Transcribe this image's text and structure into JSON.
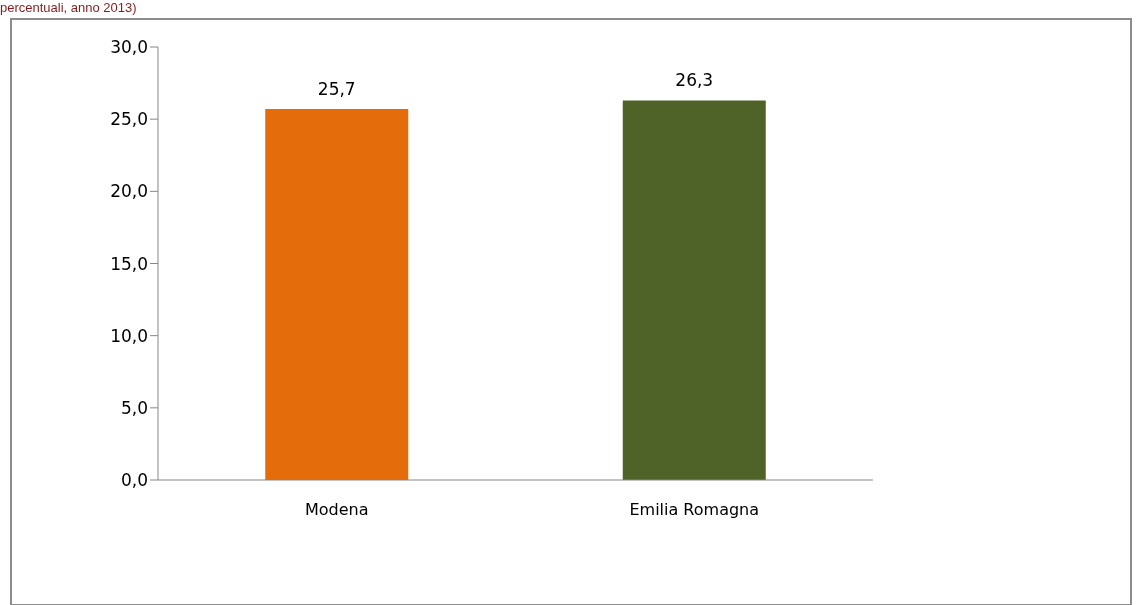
{
  "chart_data": {
    "type": "bar",
    "title": "percentuali, anno 2013)",
    "categories": [
      "Modena",
      "Emilia Romagna"
    ],
    "values": [
      25.7,
      26.3
    ],
    "colors": [
      "#e46c0a",
      "#4f6228"
    ],
    "ylim": [
      0,
      30
    ],
    "yticks": [
      {
        "value": 0,
        "label": "0,0"
      },
      {
        "value": 5,
        "label": "5,0"
      },
      {
        "value": 10,
        "label": "10,0"
      },
      {
        "value": 15,
        "label": "15,0"
      },
      {
        "value": 20,
        "label": "20,0"
      },
      {
        "value": 25,
        "label": "25,0"
      },
      {
        "value": 30,
        "label": "30,0"
      }
    ],
    "value_labels": [
      "25,7",
      "26,3"
    ],
    "grid": false,
    "legend": false
  }
}
